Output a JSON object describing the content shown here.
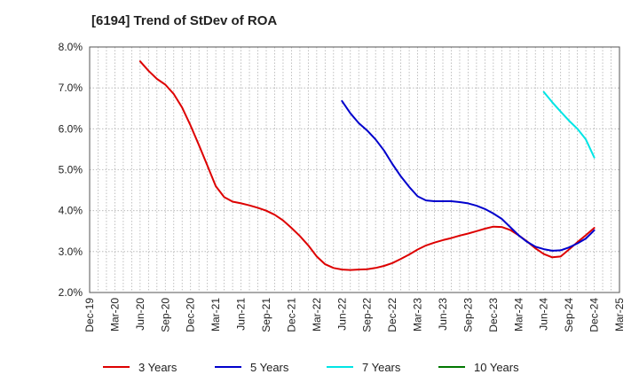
{
  "chart_data": {
    "type": "line",
    "title": "[6194]  Trend of StDev of ROA",
    "x_ticks": [
      "Dec-19",
      "Mar-20",
      "Jun-20",
      "Sep-20",
      "Dec-20",
      "Mar-21",
      "Jun-21",
      "Sep-21",
      "Dec-21",
      "Mar-22",
      "Jun-22",
      "Sep-22",
      "Dec-22",
      "Mar-23",
      "Jun-23",
      "Sep-23",
      "Dec-23",
      "Mar-24",
      "Jun-24",
      "Sep-24",
      "Dec-24",
      "Mar-25"
    ],
    "y_ticks": [
      "2.0%",
      "3.0%",
      "4.0%",
      "5.0%",
      "6.0%",
      "7.0%",
      "8.0%"
    ],
    "ylim": [
      2.0,
      8.0
    ],
    "grid": true,
    "legend_position": "bottom",
    "series": [
      {
        "name": "3 Years",
        "color": "#dd0000",
        "points": [
          [
            "Jun-20",
            7.65
          ],
          [
            "Jul-20",
            7.42
          ],
          [
            "Aug-20",
            7.22
          ],
          [
            "Sep-20",
            7.08
          ],
          [
            "Oct-20",
            6.85
          ],
          [
            "Nov-20",
            6.52
          ],
          [
            "Dec-20",
            6.08
          ],
          [
            "Jan-21",
            5.6
          ],
          [
            "Feb-21",
            5.1
          ],
          [
            "Mar-21",
            4.6
          ],
          [
            "Apr-21",
            4.33
          ],
          [
            "May-21",
            4.22
          ],
          [
            "Jun-21",
            4.18
          ],
          [
            "Jul-21",
            4.13
          ],
          [
            "Aug-21",
            4.07
          ],
          [
            "Sep-21",
            4.0
          ],
          [
            "Oct-21",
            3.9
          ],
          [
            "Nov-21",
            3.76
          ],
          [
            "Dec-21",
            3.58
          ],
          [
            "Jan-22",
            3.38
          ],
          [
            "Feb-22",
            3.15
          ],
          [
            "Mar-22",
            2.88
          ],
          [
            "Apr-22",
            2.69
          ],
          [
            "May-22",
            2.6
          ],
          [
            "Jun-22",
            2.56
          ],
          [
            "Jul-22",
            2.55
          ],
          [
            "Aug-22",
            2.56
          ],
          [
            "Sep-22",
            2.57
          ],
          [
            "Oct-22",
            2.6
          ],
          [
            "Nov-22",
            2.65
          ],
          [
            "Dec-22",
            2.72
          ],
          [
            "Jan-23",
            2.82
          ],
          [
            "Feb-23",
            2.93
          ],
          [
            "Mar-23",
            3.05
          ],
          [
            "Apr-23",
            3.15
          ],
          [
            "May-23",
            3.22
          ],
          [
            "Jun-23",
            3.28
          ],
          [
            "Jul-23",
            3.33
          ],
          [
            "Aug-23",
            3.39
          ],
          [
            "Sep-23",
            3.44
          ],
          [
            "Oct-23",
            3.5
          ],
          [
            "Nov-23",
            3.56
          ],
          [
            "Dec-23",
            3.61
          ],
          [
            "Jan-24",
            3.6
          ],
          [
            "Feb-24",
            3.53
          ],
          [
            "Mar-24",
            3.4
          ],
          [
            "Apr-24",
            3.25
          ],
          [
            "May-24",
            3.08
          ],
          [
            "Jun-24",
            2.94
          ],
          [
            "Jul-24",
            2.86
          ],
          [
            "Aug-24",
            2.88
          ],
          [
            "Sep-24",
            3.05
          ],
          [
            "Oct-24",
            3.23
          ],
          [
            "Nov-24",
            3.4
          ],
          [
            "Dec-24",
            3.58
          ]
        ]
      },
      {
        "name": "5 Years",
        "color": "#0000cc",
        "points": [
          [
            "Jun-22",
            6.68
          ],
          [
            "Jul-22",
            6.38
          ],
          [
            "Aug-22",
            6.14
          ],
          [
            "Sep-22",
            5.96
          ],
          [
            "Oct-22",
            5.74
          ],
          [
            "Nov-22",
            5.47
          ],
          [
            "Dec-22",
            5.14
          ],
          [
            "Jan-23",
            4.84
          ],
          [
            "Feb-23",
            4.58
          ],
          [
            "Mar-23",
            4.35
          ],
          [
            "Apr-23",
            4.25
          ],
          [
            "May-23",
            4.23
          ],
          [
            "Jun-23",
            4.23
          ],
          [
            "Jul-23",
            4.23
          ],
          [
            "Aug-23",
            4.21
          ],
          [
            "Sep-23",
            4.18
          ],
          [
            "Oct-23",
            4.12
          ],
          [
            "Nov-23",
            4.04
          ],
          [
            "Dec-23",
            3.93
          ],
          [
            "Jan-24",
            3.8
          ],
          [
            "Feb-24",
            3.6
          ],
          [
            "Mar-24",
            3.4
          ],
          [
            "Apr-24",
            3.24
          ],
          [
            "May-24",
            3.12
          ],
          [
            "Jun-24",
            3.06
          ],
          [
            "Jul-24",
            3.02
          ],
          [
            "Aug-24",
            3.03
          ],
          [
            "Sep-24",
            3.1
          ],
          [
            "Oct-24",
            3.2
          ],
          [
            "Nov-24",
            3.32
          ],
          [
            "Dec-24",
            3.52
          ]
        ]
      },
      {
        "name": "7 Years",
        "color": "#00e5e5",
        "points": [
          [
            "Jun-24",
            6.9
          ],
          [
            "Jul-24",
            6.65
          ],
          [
            "Aug-24",
            6.42
          ],
          [
            "Sep-24",
            6.2
          ],
          [
            "Oct-24",
            6.0
          ],
          [
            "Nov-24",
            5.74
          ],
          [
            "Dec-24",
            5.3
          ]
        ]
      },
      {
        "name": "10 Years",
        "color": "#007700",
        "points": []
      }
    ]
  }
}
